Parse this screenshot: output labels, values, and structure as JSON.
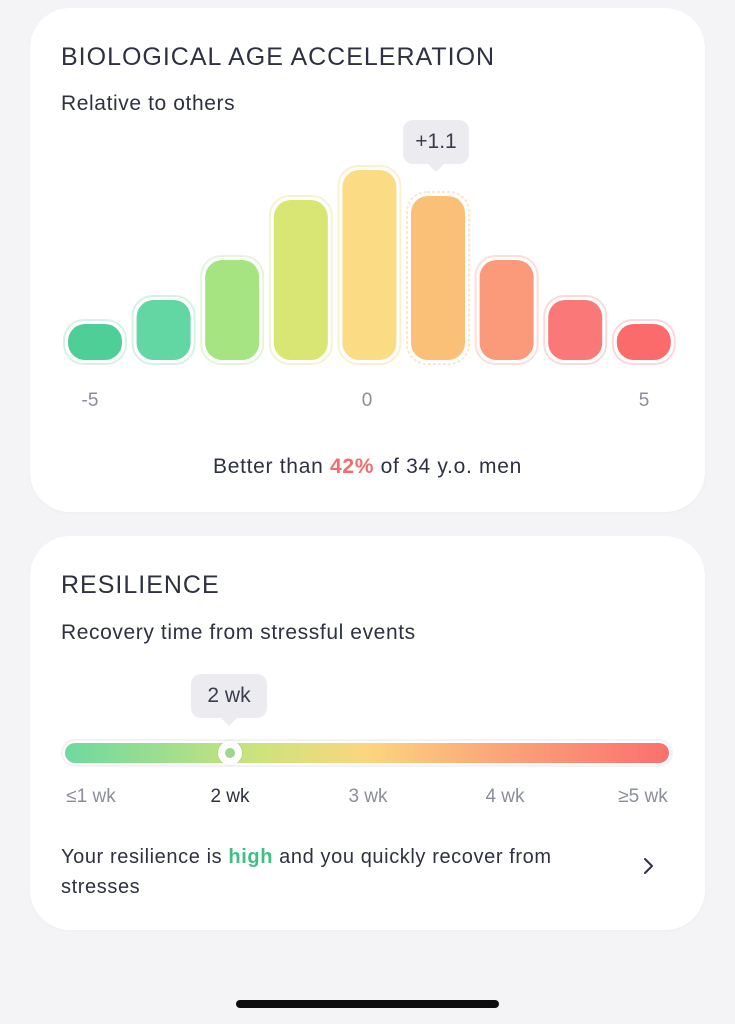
{
  "bio_age": {
    "title": "BIOLOGICAL AGE ACCELERATION",
    "subtitle": "Relative to others",
    "tooltip": "+1.1",
    "axis_labels": {
      "min": "-5",
      "mid": "0",
      "max": "5"
    },
    "summary": {
      "prefix": "Better than ",
      "percent": "42%",
      "suffix": " of 34 y.o. men"
    },
    "histogram": {
      "bins": 9,
      "relative_heights": [
        0.15,
        0.3,
        0.5,
        0.8,
        0.95,
        0.82,
        0.5,
        0.3,
        0.15
      ],
      "highlighted_bin": 5,
      "colors": [
        "#4fcf98",
        "#62d6a3",
        "#a6e481",
        "#d9e673",
        "#fbdc85",
        "#fbc077",
        "#fb9a7b",
        "#fb7878",
        "#fb6b6c"
      ],
      "outline_colors": [
        "#d9f2e4",
        "#d6f2e6",
        "#e6f5d9",
        "#f0f5d6",
        "#fbf0cf",
        "#fbe6d2",
        "#fbe0da",
        "#fbdada",
        "#fbd8da"
      ]
    }
  },
  "resilience": {
    "title": "RESILIENCE",
    "subtitle": "Recovery time from stressful events",
    "tooltip": "2 wk",
    "scale_labels": [
      "≤1 wk",
      "2 wk",
      "3 wk",
      "4 wk",
      "≥5 wk"
    ],
    "selected_index": 1,
    "position": 0.27,
    "text_prefix": "Your resilience is ",
    "text_level": "high",
    "text_suffix": " and you quickly recover from stresses",
    "chevron_icon": "chevron-right-icon"
  }
}
